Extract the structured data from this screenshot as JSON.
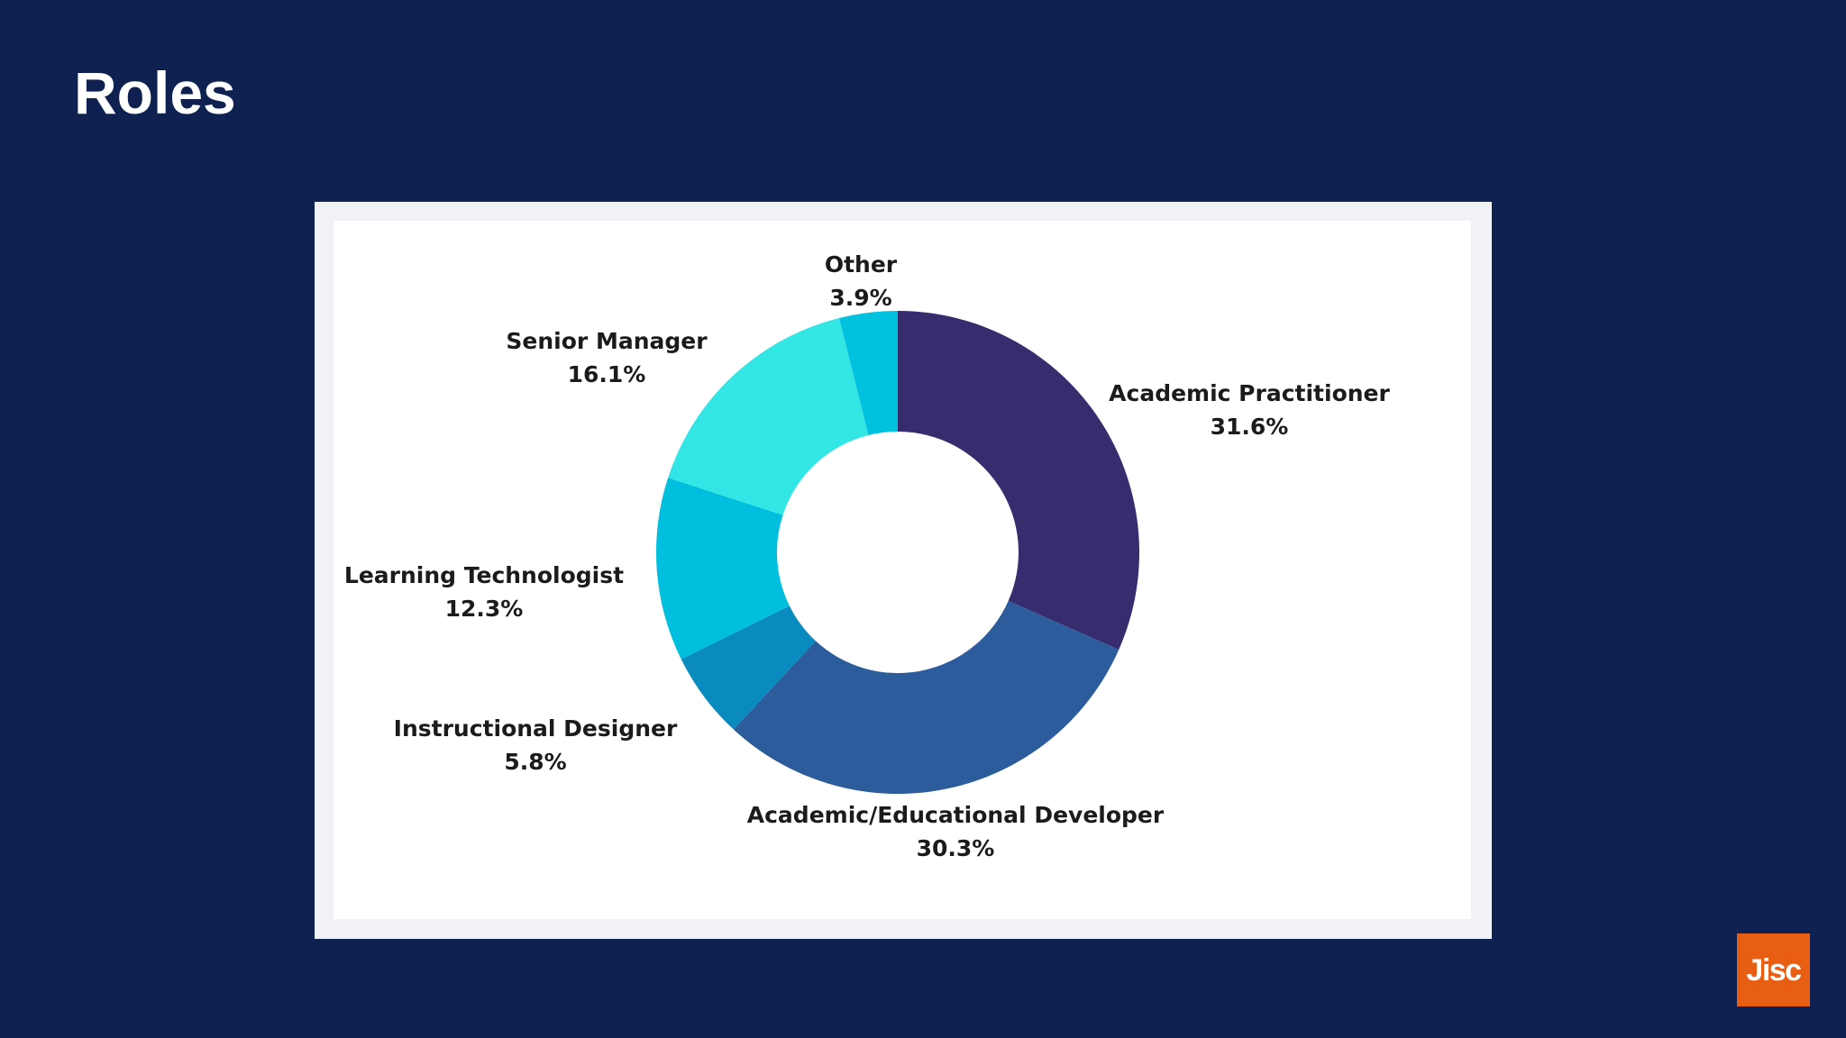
{
  "slide": {
    "title": "Roles",
    "background_color": "#0f2150"
  },
  "logo": {
    "text": "Jisc",
    "color": "#e85e13"
  },
  "chart_data": {
    "type": "pie",
    "variant": "donut",
    "title": "",
    "slices": [
      {
        "label": "Academic Practitioner",
        "value": 31.6,
        "value_label": "31.6%",
        "color": "#372c6e"
      },
      {
        "label": "Academic/Educational Developer",
        "value": 30.3,
        "value_label": "30.3%",
        "color": "#2c5c9b"
      },
      {
        "label": "Instructional Designer",
        "value": 5.8,
        "value_label": "5.8%",
        "color": "#0a8bbf"
      },
      {
        "label": "Learning Technologist",
        "value": 12.3,
        "value_label": "12.3%",
        "color": "#00bedd"
      },
      {
        "label": "Senior Manager",
        "value": 16.1,
        "value_label": "16.1%",
        "color": "#33e6e6"
      },
      {
        "label": "Other",
        "value": 3.9,
        "value_label": "3.9%",
        "color": "#00c2de"
      }
    ]
  }
}
